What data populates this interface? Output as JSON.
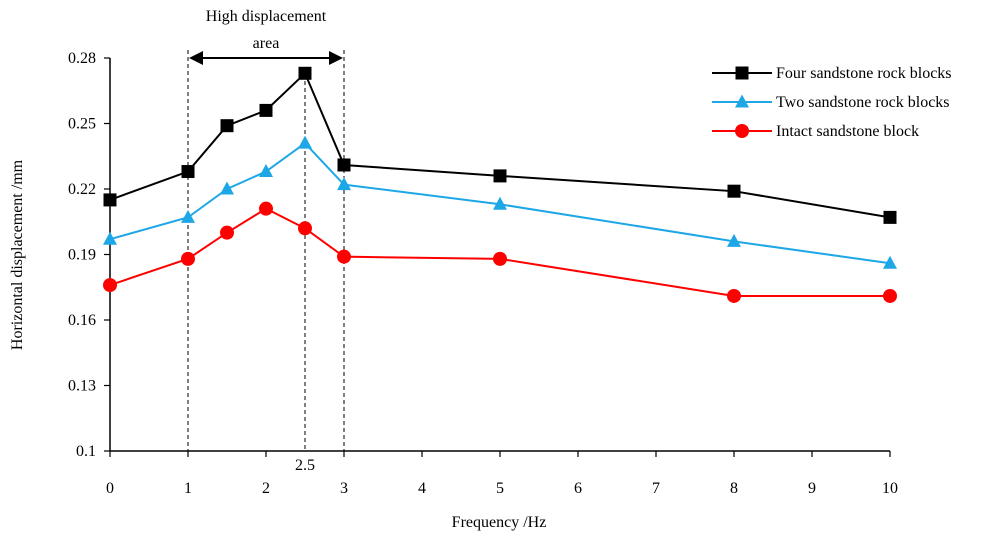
{
  "chart_data": {
    "type": "line",
    "title": "",
    "xlabel": "Frequency /Hz",
    "ylabel": "Horizontal displacement /mm",
    "x_categories": [
      "0",
      "1",
      "1.5",
      "2",
      "2.5",
      "3",
      "5",
      "8",
      "10"
    ],
    "x_tick_labels": [
      "0",
      "1",
      "2",
      "3",
      "4",
      "5",
      "6",
      "7",
      "8",
      "9",
      "10"
    ],
    "y_tick_labels": [
      "0.1",
      "0.13",
      "0.16",
      "0.19",
      "0.22",
      "0.25",
      "0.28"
    ],
    "ylim": [
      0.1,
      0.28
    ],
    "legend_position": "top-right",
    "grid": false,
    "series": [
      {
        "name": "Four sandstone rock blocks",
        "color": "#000000",
        "marker": "square",
        "values": [
          0.215,
          0.228,
          0.249,
          0.256,
          0.273,
          0.231,
          0.226,
          0.219,
          0.207
        ]
      },
      {
        "name": "Two sandstone rock blocks",
        "color": "#1ea7e6",
        "marker": "triangle",
        "values": [
          0.197,
          0.207,
          0.22,
          0.228,
          0.241,
          0.222,
          0.213,
          0.196,
          0.186
        ]
      },
      {
        "name": "Intact sandstone block",
        "color": "#ff0000",
        "marker": "circle",
        "values": [
          0.176,
          0.188,
          0.2,
          0.211,
          0.202,
          0.189,
          0.188,
          0.171,
          0.171
        ]
      }
    ],
    "annotation": {
      "label_line1": "High displacement",
      "label_line2": "area",
      "marker_label": "2.5"
    }
  }
}
